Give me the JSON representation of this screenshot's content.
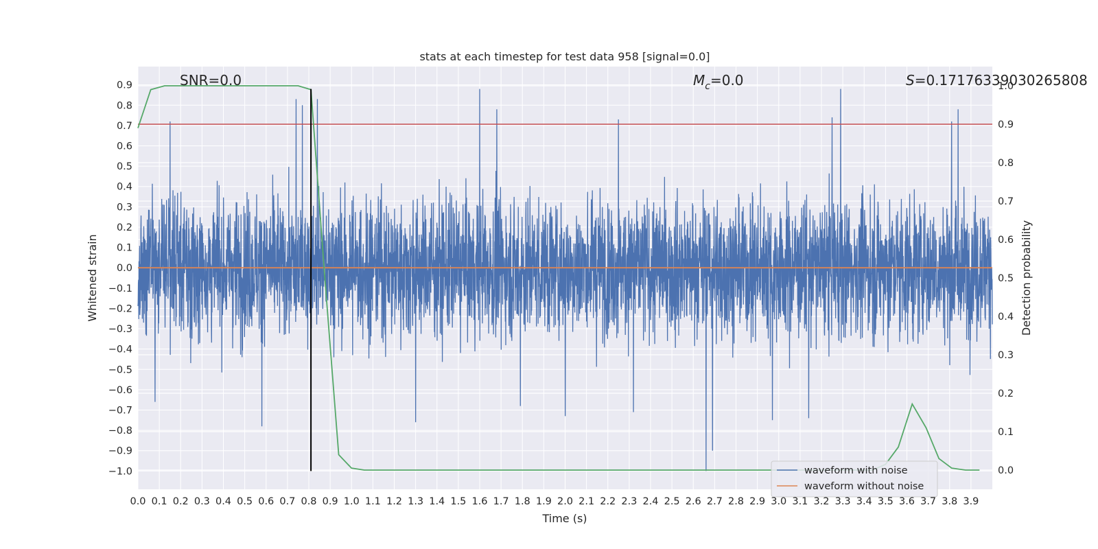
{
  "chart_data": {
    "type": "line",
    "title": "stats at each timestep for test data 958 [signal=0.0]",
    "xlabel": "Time (s)",
    "ylabel_left": "Whitened strain",
    "ylabel_right": "Detection probability",
    "xlim": [
      0.0,
      4.0
    ],
    "ylim_left": [
      -1.09,
      0.99
    ],
    "ylim_right": [
      -0.05,
      1.05
    ],
    "x_ticks": [
      "0.0",
      "0.1",
      "0.2",
      "0.3",
      "0.4",
      "0.5",
      "0.6",
      "0.7",
      "0.8",
      "0.9",
      "1.0",
      "1.1",
      "1.2",
      "1.3",
      "1.4",
      "1.5",
      "1.6",
      "1.7",
      "1.8",
      "1.9",
      "2.0",
      "2.1",
      "2.2",
      "2.3",
      "2.4",
      "2.5",
      "2.6",
      "2.7",
      "2.8",
      "2.9",
      "3.0",
      "3.1",
      "3.2",
      "3.3",
      "3.4",
      "3.5",
      "3.6",
      "3.7",
      "3.8",
      "3.9"
    ],
    "y_ticks_left": [
      "0.9",
      "0.8",
      "0.7",
      "0.6",
      "0.5",
      "0.4",
      "0.3",
      "0.2",
      "0.1",
      "0.0",
      "−0.1",
      "−0.2",
      "−0.3",
      "−0.4",
      "−0.5",
      "−0.6",
      "−0.7",
      "−0.8",
      "−0.9",
      "−1.0"
    ],
    "y_ticks_right": [
      "1.0",
      "0.9",
      "0.8",
      "0.7",
      "0.6",
      "0.5",
      "0.4",
      "0.3",
      "0.2",
      "0.1",
      "0.0"
    ],
    "grid": true,
    "legend_position": "lower-right",
    "annotations": {
      "snr": "SNR=0.0",
      "mc_symbol": "M",
      "mc_sub": "c",
      "mc_value": "=0.0",
      "s_symbol": "S",
      "s_value": "=0.17176339030265808"
    },
    "series": [
      {
        "name": "waveform with noise",
        "axis": "left",
        "color": "#4c72b0",
        "envelope": {
          "typical_abs": 0.3,
          "min": -1.0,
          "max": 0.88,
          "spikes": [
            {
              "x": 0.15,
              "y": 0.72
            },
            {
              "x": 0.74,
              "y": 0.83
            },
            {
              "x": 0.77,
              "y": 0.8
            },
            {
              "x": 0.84,
              "y": 0.83
            },
            {
              "x": 1.6,
              "y": 0.88
            },
            {
              "x": 1.68,
              "y": 0.78
            },
            {
              "x": 2.25,
              "y": 0.73
            },
            {
              "x": 3.25,
              "y": 0.74
            },
            {
              "x": 3.29,
              "y": 0.88
            },
            {
              "x": 3.84,
              "y": 0.78
            },
            {
              "x": 3.81,
              "y": 0.72
            },
            {
              "x": 0.58,
              "y": -0.78
            },
            {
              "x": 0.08,
              "y": -0.66
            },
            {
              "x": 1.3,
              "y": -0.76
            },
            {
              "x": 2.66,
              "y": -1.0
            },
            {
              "x": 2.69,
              "y": -0.9
            },
            {
              "x": 2.97,
              "y": -0.75
            },
            {
              "x": 2.0,
              "y": -0.73
            },
            {
              "x": 2.32,
              "y": -0.71
            },
            {
              "x": 1.79,
              "y": -0.68
            },
            {
              "x": 3.14,
              "y": -0.74
            }
          ]
        }
      },
      {
        "name": "waveform without noise",
        "axis": "left",
        "color": "#dd8452",
        "x": [
          0.0,
          4.0
        ],
        "y": [
          0.0,
          0.0
        ]
      },
      {
        "name": "detection probability",
        "axis": "right",
        "color": "#55a868",
        "x": [
          0.0,
          0.06,
          0.125,
          0.19,
          0.25,
          0.31,
          0.375,
          0.44,
          0.5,
          0.56,
          0.625,
          0.69,
          0.75,
          0.81,
          0.875,
          0.94,
          1.0,
          1.06,
          1.125,
          1.5,
          2.0,
          2.5,
          3.0,
          3.375,
          3.44,
          3.5,
          3.56,
          3.625,
          3.69,
          3.75,
          3.81,
          3.875,
          3.94
        ],
        "y": [
          0.89,
          0.99,
          1.0,
          1.0,
          1.0,
          1.0,
          1.0,
          1.0,
          1.0,
          1.0,
          1.0,
          1.0,
          1.0,
          0.99,
          0.5,
          0.04,
          0.005,
          0.0,
          0.0,
          0.0,
          0.0,
          0.0,
          0.0,
          0.0,
          0.0,
          0.015,
          0.06,
          0.172,
          0.11,
          0.03,
          0.005,
          0.0,
          0.0
        ]
      }
    ],
    "threshold": {
      "axis": "right",
      "y": 0.9,
      "color": "#c44e52"
    },
    "marker_line": {
      "x": 0.81,
      "y_from": -1.0,
      "y_to": 0.88,
      "color": "#000000"
    }
  }
}
